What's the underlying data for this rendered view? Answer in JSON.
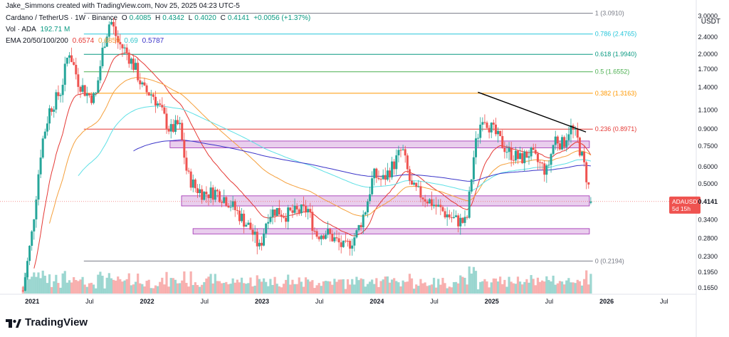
{
  "attribution": "Jake_Simmons created with TradingView.com, Nov 25, 2025 04:23 UTC-5",
  "symbol_line": {
    "name": "Cardano / TetherUS · 1W · Binance",
    "o_label": "O",
    "o": "0.4085",
    "h_label": "H",
    "h": "0.4342",
    "l_label": "L",
    "l": "0.4020",
    "c_label": "C",
    "c": "0.4141",
    "change": "+0.0056 (+1.37%)"
  },
  "volume_line": {
    "label": "Vol · ADA",
    "value": "192.71 M"
  },
  "ema_line": {
    "label": "EMA 20/50/100/200",
    "v20": "0.6574",
    "v50": "0.6859",
    "v100": "0.69",
    "v200": "0.5787"
  },
  "logo_text": "TradingView",
  "colors": {
    "up": "#26a69a",
    "down": "#ef5350",
    "ema20": "#e53935",
    "ema50": "#f5a03c",
    "ema100": "#5ee0e6",
    "ema200": "#3b35c9",
    "zone": "#e1bee7",
    "zone_border": "#9c27b0",
    "trendline": "#000000"
  },
  "chart_data": {
    "type": "candlestick",
    "scale": "log",
    "currency": "USDT",
    "ylim": [
      0.155,
      3.3
    ],
    "y_ticks": [
      "3.0000",
      "2.4000",
      "2.0000",
      "1.7000",
      "1.4000",
      "1.1000",
      "0.9000",
      "0.7500",
      "0.6000",
      "0.5000",
      "0.4141",
      "0.3400",
      "0.2800",
      "0.2300",
      "0.1950",
      "0.1650"
    ],
    "x_ticks": [
      {
        "label": "2021",
        "t": 2021.0
      },
      {
        "label": "Jul",
        "t": 2021.5
      },
      {
        "label": "2022",
        "t": 2022.0
      },
      {
        "label": "Jul",
        "t": 2022.5
      },
      {
        "label": "2023",
        "t": 2023.0
      },
      {
        "label": "Jul",
        "t": 2023.5
      },
      {
        "label": "2024",
        "t": 2024.0
      },
      {
        "label": "Jul",
        "t": 2024.5
      },
      {
        "label": "2025",
        "t": 2025.0
      },
      {
        "label": "Jul",
        "t": 2025.5
      },
      {
        "label": "2026",
        "t": 2026.0
      },
      {
        "label": "Jul",
        "t": 2026.5
      }
    ],
    "last_price": {
      "symbol": "ADAUSDT",
      "value": "0.4141",
      "countdown": "5d 15h"
    },
    "fib_levels": [
      {
        "ratio": "1",
        "value": 3.091,
        "label": "1 (3.0910)",
        "color": "#787b86"
      },
      {
        "ratio": "0.786",
        "value": 2.4765,
        "label": "0.786 (2.4765)",
        "color": "#26c6da"
      },
      {
        "ratio": "0.618",
        "value": 1.994,
        "label": "0.618 (1.9940)",
        "color": "#089981"
      },
      {
        "ratio": "0.5",
        "value": 1.6552,
        "label": "0.5 (1.6552)",
        "color": "#4caf50"
      },
      {
        "ratio": "0.382",
        "value": 1.3163,
        "label": "0.382 (1.3163)",
        "color": "#ff9800"
      },
      {
        "ratio": "0.236",
        "value": 0.8971,
        "label": "0.236 (0.8971)",
        "color": "#e53935"
      },
      {
        "ratio": "0",
        "value": 0.2194,
        "label": "0 (0.2194)",
        "color": "#787b86"
      }
    ],
    "zones": [
      {
        "from": 2022.2,
        "to": 2025.85,
        "low": 0.735,
        "high": 0.79
      },
      {
        "from": 2022.3,
        "to": 2025.85,
        "low": 0.395,
        "high": 0.44
      },
      {
        "from": 2022.4,
        "to": 2025.85,
        "low": 0.293,
        "high": 0.31
      }
    ],
    "trendline": {
      "t1": 2024.88,
      "p1": 1.33,
      "t2": 2025.82,
      "p2": 0.87
    },
    "ohlc_anchors": [
      [
        2020.92,
        0.16
      ],
      [
        2021.0,
        0.3
      ],
      [
        2021.08,
        0.75
      ],
      [
        2021.15,
        1.1
      ],
      [
        2021.25,
        1.35
      ],
      [
        2021.32,
        2.1
      ],
      [
        2021.4,
        1.5
      ],
      [
        2021.48,
        1.3
      ],
      [
        2021.55,
        1.25
      ],
      [
        2021.62,
        2.2
      ],
      [
        2021.68,
        2.9
      ],
      [
        2021.75,
        2.25
      ],
      [
        2021.82,
        2.05
      ],
      [
        2021.9,
        1.7
      ],
      [
        2021.97,
        1.35
      ],
      [
        2022.05,
        1.3
      ],
      [
        2022.12,
        1.1
      ],
      [
        2022.2,
        0.88
      ],
      [
        2022.28,
        0.95
      ],
      [
        2022.35,
        0.55
      ],
      [
        2022.42,
        0.48
      ],
      [
        2022.5,
        0.45
      ],
      [
        2022.6,
        0.46
      ],
      [
        2022.7,
        0.42
      ],
      [
        2022.82,
        0.35
      ],
      [
        2022.9,
        0.31
      ],
      [
        2022.98,
        0.25
      ],
      [
        2023.05,
        0.36
      ],
      [
        2023.12,
        0.38
      ],
      [
        2023.2,
        0.36
      ],
      [
        2023.3,
        0.37
      ],
      [
        2023.4,
        0.38
      ],
      [
        2023.47,
        0.29
      ],
      [
        2023.55,
        0.3
      ],
      [
        2023.62,
        0.28
      ],
      [
        2023.72,
        0.25
      ],
      [
        2023.82,
        0.29
      ],
      [
        2023.9,
        0.38
      ],
      [
        2023.97,
        0.55
      ],
      [
        2024.05,
        0.52
      ],
      [
        2024.15,
        0.62
      ],
      [
        2024.22,
        0.73
      ],
      [
        2024.3,
        0.48
      ],
      [
        2024.4,
        0.44
      ],
      [
        2024.5,
        0.4
      ],
      [
        2024.58,
        0.37
      ],
      [
        2024.68,
        0.34
      ],
      [
        2024.78,
        0.33
      ],
      [
        2024.85,
        0.72
      ],
      [
        2024.92,
        1.05
      ],
      [
        2025.0,
        0.9
      ],
      [
        2025.08,
        0.78
      ],
      [
        2025.15,
        0.7
      ],
      [
        2025.25,
        0.65
      ],
      [
        2025.33,
        0.7
      ],
      [
        2025.4,
        0.63
      ],
      [
        2025.48,
        0.57
      ],
      [
        2025.55,
        0.82
      ],
      [
        2025.62,
        0.76
      ],
      [
        2025.68,
        0.92
      ],
      [
        2025.74,
        0.82
      ],
      [
        2025.8,
        0.62
      ],
      [
        2025.87,
        0.414
      ]
    ],
    "volume_note": "bottom histogram, no printed values"
  }
}
